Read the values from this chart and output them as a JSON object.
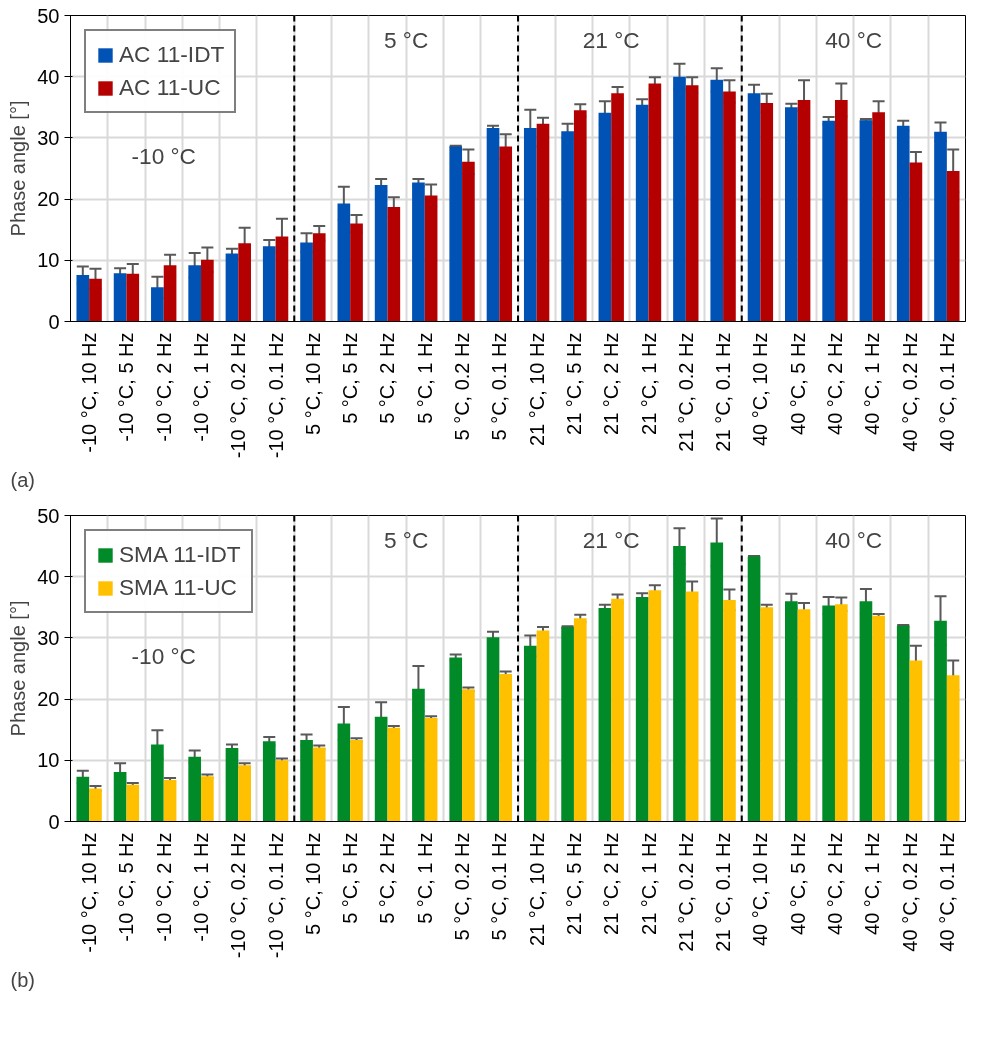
{
  "chart_data": [
    {
      "type": "bar",
      "ylabel": "Phase angle [°]",
      "categories": [
        "-10 °C, 10 Hz",
        "-10 °C, 5 Hz",
        "-10 °C, 2 Hz",
        "-10 °C, 1 Hz",
        "-10 °C, 0.2 Hz",
        "-10 °C, 0.1 Hz",
        "5 °C, 10 Hz",
        "5 °C, 5 Hz",
        "5 °C, 2 Hz",
        "5 °C, 1 Hz",
        "5 °C, 0.2 Hz",
        "5 °C, 0.1 Hz",
        "21 °C, 10 Hz",
        "21 °C, 5 Hz",
        "21 °C, 2 Hz",
        "21 °C, 1 Hz",
        "21 °C, 0.2 Hz",
        "21 °C, 0.1 Hz",
        "40 °C, 10 Hz",
        "40 °C, 5 Hz",
        "40 °C, 2 Hz",
        "40 °C, 1 Hz",
        "40 °C, 0.2 Hz",
        "40 °C, 0.1 Hz"
      ],
      "series": [
        {
          "name": "AC 11-IDT",
          "color": "#0052b4",
          "values": [
            7.6,
            7.9,
            5.6,
            9.2,
            11.1,
            12.3,
            12.9,
            19.3,
            22.3,
            22.7,
            28.6,
            31.6,
            31.6,
            31.1,
            34.1,
            35.4,
            40.0,
            39.5,
            37.3,
            35.0,
            32.8,
            32.9,
            32.0,
            31.0
          ],
          "errors": [
            1.4,
            0.8,
            1.7,
            2.0,
            0.8,
            1.0,
            1.5,
            2.7,
            1.0,
            0.6,
            0.1,
            0.4,
            3.0,
            1.2,
            1.9,
            0.9,
            2.1,
            1.9,
            1.4,
            0.6,
            0.6,
            0.2,
            0.8,
            1.5
          ]
        },
        {
          "name": "AC 11-UC",
          "color": "#b40000",
          "values": [
            7.0,
            7.8,
            9.2,
            10.1,
            12.8,
            13.9,
            14.4,
            16.0,
            18.7,
            20.6,
            26.1,
            28.6,
            32.3,
            34.5,
            37.3,
            38.9,
            38.6,
            37.6,
            35.7,
            36.2,
            36.2,
            34.2,
            26.0,
            24.6
          ],
          "errors": [
            1.6,
            1.6,
            1.7,
            2.0,
            2.5,
            2.9,
            1.2,
            1.4,
            1.6,
            1.8,
            2.0,
            2.0,
            1.0,
            1.0,
            1.0,
            1.0,
            1.3,
            1.8,
            1.5,
            3.2,
            2.7,
            1.8,
            1.7,
            3.5
          ]
        }
      ],
      "ylim": [
        0,
        50
      ],
      "yticks": [
        0,
        10,
        20,
        30,
        40,
        50
      ],
      "grid": true,
      "legend": "top left",
      "annotations": [
        "-10 °C",
        "5 °C",
        "21 °C",
        "40 °C",
        "(a)"
      ]
    },
    {
      "type": "bar",
      "ylabel": "Phase angle [°]",
      "categories": [
        "-10 °C, 10 Hz",
        "-10 °C, 5 Hz",
        "-10 °C, 2 Hz",
        "-10 °C, 1 Hz",
        "-10 °C, 0.2 Hz",
        "-10 °C, 0.1 Hz",
        "5 °C, 10 Hz",
        "5 °C, 5 Hz",
        "5 °C, 2 Hz",
        "5 °C, 1 Hz",
        "5 °C, 0.2 Hz",
        "5 °C, 0.1 Hz",
        "21 °C, 10 Hz",
        "21 °C, 5 Hz",
        "21 °C, 2 Hz",
        "21 °C, 1 Hz",
        "21 °C, 0.2 Hz",
        "21 °C, 0.1 Hz",
        "40 °C, 10 Hz",
        "40 °C, 5 Hz",
        "40 °C, 2 Hz",
        "40 °C, 1 Hz",
        "40 °C, 0.2 Hz",
        "40 °C, 0.1 Hz"
      ],
      "series": [
        {
          "name": "SMA 11-IDT",
          "color": "#008a28",
          "values": [
            7.3,
            8.1,
            12.6,
            10.6,
            12.0,
            13.1,
            13.3,
            16.0,
            17.1,
            21.7,
            26.8,
            30.1,
            28.7,
            31.8,
            34.9,
            36.7,
            45.0,
            45.6,
            43.3,
            36.0,
            35.3,
            36.0,
            32.0,
            32.8
          ],
          "errors": [
            1.0,
            1.4,
            2.3,
            1.0,
            0.6,
            0.7,
            0.9,
            2.7,
            2.4,
            3.7,
            0.5,
            0.9,
            1.7,
            0.1,
            0.5,
            0.6,
            2.9,
            3.9,
            0.1,
            1.2,
            1.4,
            2.0,
            0.1,
            4.0
          ]
        },
        {
          "name": "SMA 11-UC",
          "color": "#ffc000",
          "values": [
            5.4,
            6.0,
            6.8,
            7.4,
            9.2,
            10.0,
            12.1,
            13.3,
            15.3,
            16.9,
            21.6,
            24.1,
            31.2,
            33.2,
            36.4,
            37.8,
            37.6,
            36.2,
            35.0,
            34.7,
            35.5,
            33.6,
            26.3,
            23.9
          ],
          "errors": [
            0.4,
            0.3,
            0.3,
            0.3,
            0.3,
            0.3,
            0.3,
            0.3,
            0.3,
            0.3,
            0.3,
            0.4,
            0.6,
            0.6,
            0.7,
            0.8,
            1.6,
            1.7,
            0.4,
            1.0,
            1.1,
            0.3,
            2.4,
            2.4
          ]
        }
      ],
      "ylim": [
        0,
        50
      ],
      "yticks": [
        0,
        10,
        20,
        30,
        40,
        50
      ],
      "grid": true,
      "legend": "top left",
      "annotations": [
        "-10 °C",
        "5 °C",
        "21 °C",
        "40 °C",
        "(b)"
      ]
    }
  ]
}
